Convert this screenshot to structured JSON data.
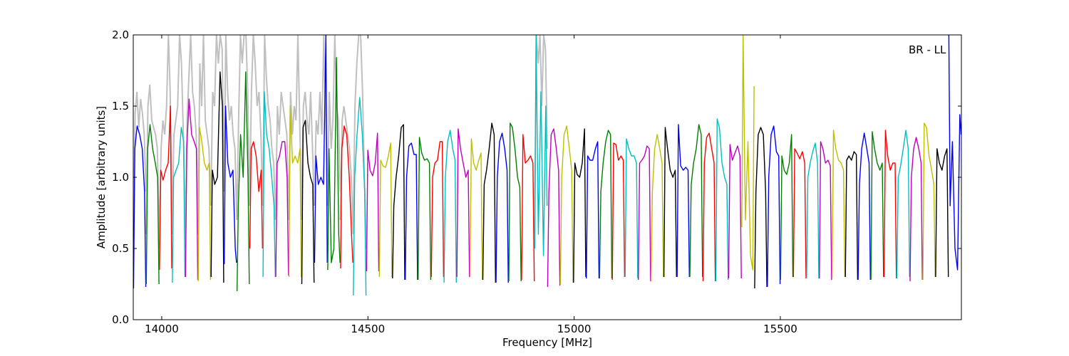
{
  "chart_data": {
    "type": "line",
    "xlabel": "Frequency [MHz]",
    "ylabel": "Amplitude [arbitrary units]",
    "annotation": "BR - LL",
    "xlim": [
      13931,
      15939
    ],
    "ylim": [
      0,
      2.0
    ],
    "xticks": [
      14000,
      14500,
      15000,
      15500
    ],
    "xtick_labels": [
      "14000",
      "14500",
      "15000",
      "15500"
    ],
    "yticks": [
      0,
      0.5,
      1.0,
      1.5,
      2.0
    ],
    "ytick_labels": [
      "0.0",
      "0.5",
      "1.0",
      "1.5",
      "2.0"
    ],
    "grid": false,
    "colors": {
      "b": "#0000ff",
      "g": "#008000",
      "r": "#ff0000",
      "c": "#00bfbf",
      "m": "#bf00bf",
      "y": "#bfbf00",
      "k": "#000000",
      "grey": "#c0c0c0"
    },
    "reference_segments": [
      {
        "f": [
          13931,
          13962
        ],
        "v": [
          0.5,
          1.45,
          1.6,
          1.35,
          1.55,
          1.45,
          1.3,
          0.9
        ]
      },
      {
        "f": [
          13962,
          13994
        ],
        "v": [
          0.6,
          1.5,
          1.65,
          1.4,
          1.35,
          1.3,
          1.2,
          0.6
        ]
      },
      {
        "f": [
          13994,
          14025
        ],
        "v": [
          0.5,
          1.2,
          1.4,
          1.3,
          1.5,
          2.0,
          1.6,
          0.6
        ]
      },
      {
        "f": [
          14025,
          14057
        ],
        "v": [
          0.6,
          1.3,
          1.4,
          1.5,
          2.0,
          1.8,
          1.3,
          0.7
        ]
      },
      {
        "f": [
          14057,
          14088
        ],
        "v": [
          0.5,
          1.4,
          1.7,
          2.0,
          1.6,
          1.5,
          1.3,
          0.6
        ]
      },
      {
        "f": [
          14088,
          14119
        ],
        "v": [
          0.6,
          1.8,
          1.5,
          2.0,
          1.4,
          1.3,
          1.2,
          0.8
        ]
      },
      {
        "f": [
          14119,
          14151
        ],
        "v": [
          0.8,
          1.6,
          1.5,
          2.0,
          1.8,
          2.0,
          1.9,
          1.0
        ]
      },
      {
        "f": [
          14151,
          14182
        ],
        "v": [
          0.9,
          2.0,
          1.6,
          1.4,
          1.5,
          1.3,
          1.2,
          0.7
        ]
      },
      {
        "f": [
          14182,
          14213
        ],
        "v": [
          0.7,
          1.4,
          2.0,
          1.8,
          2.0,
          2.0,
          1.6,
          0.8
        ]
      },
      {
        "f": [
          14213,
          14245
        ],
        "v": [
          0.8,
          1.6,
          2.0,
          1.8,
          1.5,
          1.6,
          1.3,
          0.8
        ]
      },
      {
        "f": [
          14245,
          14276
        ],
        "v": [
          0.8,
          2.0,
          1.7,
          1.5,
          1.4,
          1.2,
          1.1,
          0.7
        ]
      },
      {
        "f": [
          14276,
          14308
        ],
        "v": [
          0.7,
          1.5,
          1.3,
          1.6,
          1.5,
          1.4,
          1.3,
          0.7
        ]
      },
      {
        "f": [
          14308,
          14339
        ],
        "v": [
          0.7,
          1.6,
          1.3,
          1.5,
          1.4,
          2.0,
          1.4,
          0.8
        ]
      },
      {
        "f": [
          14339,
          14370
        ],
        "v": [
          0.7,
          1.5,
          1.6,
          1.4,
          1.3,
          1.6,
          1.2,
          0.8
        ]
      },
      {
        "f": [
          14370,
          14402
        ],
        "v": [
          0.8,
          1.4,
          1.3,
          1.6,
          1.3,
          2.0,
          1.4,
          1.0
        ]
      },
      {
        "f": [
          14402,
          14433
        ],
        "v": [
          0.8,
          1.6,
          1.2,
          1.4,
          2.0,
          1.5,
          1.4,
          0.9
        ]
      },
      {
        "f": [
          14433,
          14464
        ],
        "v": [
          0.7,
          1.4,
          1.5,
          1.4,
          1.3,
          1.2,
          1.0,
          0.6
        ]
      },
      {
        "f": [
          14464,
          14496
        ],
        "v": [
          0.6,
          1.5,
          1.8,
          2.0,
          2.0,
          1.6,
          1.0,
          0.5
        ]
      },
      {
        "f": [
          14904,
          14935
        ],
        "v": [
          0.6,
          2.0,
          1.8,
          2.0,
          1.5,
          2.0,
          1.9,
          1.2
        ]
      }
    ],
    "segments": [
      {
        "f": [
          13931,
          13962
        ],
        "c": "b",
        "v": [
          0.22,
          1.2,
          1.36,
          1.3,
          1.2,
          0.9,
          0.23
        ]
      },
      {
        "f": [
          13962,
          13994
        ],
        "c": "g",
        "v": [
          0.25,
          1.2,
          1.37,
          1.2,
          1.1,
          1.0,
          0.25
        ]
      },
      {
        "f": [
          13994,
          14025
        ],
        "c": "r",
        "v": [
          0.35,
          1.05,
          0.98,
          1.05,
          1.1,
          1.5,
          0.36
        ]
      },
      {
        "f": [
          14025,
          14057
        ],
        "c": "c",
        "v": [
          0.26,
          1.0,
          1.05,
          1.1,
          1.35,
          1.25,
          0.3
        ]
      },
      {
        "f": [
          14057,
          14088
        ],
        "c": "m",
        "v": [
          0.3,
          1.2,
          1.55,
          1.3,
          1.25,
          1.2,
          0.28
        ]
      },
      {
        "f": [
          14088,
          14119
        ],
        "c": "y",
        "v": [
          0.27,
          1.35,
          1.25,
          1.1,
          1.05,
          1.1,
          0.28
        ]
      },
      {
        "f": [
          14119,
          14151
        ],
        "c": "k",
        "v": [
          0.3,
          1.05,
          0.95,
          1.0,
          1.74,
          1.5,
          0.26
        ]
      },
      {
        "f": [
          14151,
          14182
        ],
        "c": "b",
        "v": [
          0.39,
          1.5,
          1.1,
          1.0,
          1.05,
          0.5,
          0.4
        ]
      },
      {
        "f": [
          14182,
          14213
        ],
        "c": "g",
        "v": [
          0.2,
          0.8,
          1.3,
          1.0,
          1.74,
          1.0,
          0.25
        ]
      },
      {
        "f": [
          14213,
          14245
        ],
        "c": "r",
        "v": [
          0.5,
          1.2,
          1.25,
          1.15,
          0.9,
          1.05,
          0.5
        ]
      },
      {
        "f": [
          14245,
          14276
        ],
        "c": "c",
        "v": [
          0.3,
          1.6,
          1.3,
          1.2,
          1.0,
          0.8,
          0.3
        ]
      },
      {
        "f": [
          14276,
          14308
        ],
        "c": "m",
        "v": [
          0.3,
          1.1,
          1.15,
          1.25,
          1.25,
          1.0,
          0.31
        ]
      },
      {
        "f": [
          14308,
          14339
        ],
        "c": "y",
        "v": [
          0.3,
          1.5,
          1.1,
          1.15,
          1.1,
          1.2,
          0.3
        ]
      },
      {
        "f": [
          14339,
          14370
        ],
        "c": "k",
        "v": [
          0.25,
          1.35,
          1.4,
          1.1,
          1.0,
          0.95,
          0.26
        ]
      },
      {
        "f": [
          14370,
          14402
        ],
        "c": "b",
        "v": [
          0.4,
          1.15,
          0.95,
          1.0,
          0.95,
          2.0,
          0.4
        ]
      },
      {
        "f": [
          14402,
          14433
        ],
        "c": "g",
        "v": [
          0.35,
          1.2,
          0.4,
          0.5,
          1.84,
          0.6,
          0.4
        ]
      },
      {
        "f": [
          14433,
          14464
        ],
        "c": "r",
        "v": [
          0.36,
          1.2,
          1.36,
          1.3,
          1.0,
          0.6,
          0.4
        ]
      },
      {
        "f": [
          14464,
          14496
        ],
        "c": "c",
        "v": [
          0.17,
          1.0,
          1.3,
          1.56,
          1.3,
          0.9,
          0.17
        ]
      },
      {
        "f": [
          14496,
          14527
        ],
        "c": "m",
        "v": [
          0.34,
          1.19,
          1.05,
          1.01,
          1.1,
          1.31,
          0.34
        ]
      },
      {
        "f": [
          14527,
          14559
        ],
        "c": "y",
        "v": [
          0.3,
          1.12,
          1.08,
          1.07,
          1.15,
          1.24,
          0.3
        ]
      },
      {
        "f": [
          14559,
          14590
        ],
        "c": "k",
        "v": [
          0.29,
          0.8,
          1.0,
          1.15,
          1.35,
          1.37,
          0.28
        ]
      },
      {
        "f": [
          14590,
          14621
        ],
        "c": "b",
        "v": [
          0.28,
          1.0,
          1.22,
          1.24,
          1.16,
          1.16,
          0.28
        ]
      },
      {
        "f": [
          14621,
          14653
        ],
        "c": "g",
        "v": [
          0.28,
          1.28,
          1.17,
          1.12,
          1.13,
          1.1,
          0.28
        ]
      },
      {
        "f": [
          14653,
          14684
        ],
        "c": "r",
        "v": [
          0.3,
          1.0,
          1.1,
          1.12,
          1.25,
          1.25,
          0.3
        ]
      },
      {
        "f": [
          14684,
          14715
        ],
        "c": "c",
        "v": [
          0.26,
          1.0,
          1.25,
          1.33,
          1.2,
          1.12,
          0.26
        ]
      },
      {
        "f": [
          14715,
          14747
        ],
        "c": "m",
        "v": [
          0.3,
          1.34,
          1.2,
          1.1,
          1.0,
          1.05,
          0.3
        ]
      },
      {
        "f": [
          14747,
          14778
        ],
        "c": "y",
        "v": [
          0.3,
          1.27,
          1.1,
          1.05,
          1.12,
          1.17,
          0.28
        ]
      },
      {
        "f": [
          14778,
          14810
        ],
        "c": "k",
        "v": [
          0.28,
          0.95,
          1.05,
          1.2,
          1.38,
          1.3,
          0.26
        ]
      },
      {
        "f": [
          14810,
          14841
        ],
        "c": "b",
        "v": [
          0.26,
          1.0,
          1.25,
          1.31,
          1.2,
          1.05,
          0.26
        ]
      },
      {
        "f": [
          14841,
          14872
        ],
        "c": "g",
        "v": [
          0.27,
          1.38,
          1.35,
          1.2,
          1.0,
          0.93,
          0.27
        ]
      },
      {
        "f": [
          14872,
          14904
        ],
        "c": "r",
        "v": [
          0.28,
          1.3,
          1.1,
          1.12,
          1.15,
          1.1,
          0.27
        ]
      },
      {
        "f": [
          14904,
          14935
        ],
        "c": "c",
        "v": [
          0.5,
          2.0,
          0.6,
          1.6,
          0.45,
          1.5,
          0.8
        ]
      },
      {
        "f": [
          14935,
          14966
        ],
        "c": "m",
        "v": [
          0.23,
          0.9,
          1.3,
          1.34,
          1.2,
          1.05,
          0.24
        ]
      },
      {
        "f": [
          14966,
          14998
        ],
        "c": "y",
        "v": [
          0.25,
          1.0,
          1.3,
          1.36,
          1.2,
          1.05,
          0.26
        ]
      },
      {
        "f": [
          14998,
          15029
        ],
        "c": "k",
        "v": [
          0.26,
          1.1,
          1.02,
          1.0,
          1.1,
          1.34,
          0.3
        ]
      },
      {
        "f": [
          15029,
          15061
        ],
        "c": "b",
        "v": [
          0.29,
          1.15,
          1.12,
          1.12,
          1.2,
          1.25,
          0.29
        ]
      },
      {
        "f": [
          15061,
          15092
        ],
        "c": "g",
        "v": [
          0.29,
          0.9,
          1.1,
          1.25,
          1.33,
          1.3,
          0.29
        ]
      },
      {
        "f": [
          15092,
          15123
        ],
        "c": "r",
        "v": [
          0.28,
          1.24,
          1.23,
          1.12,
          1.15,
          1.12,
          0.3
        ]
      },
      {
        "f": [
          15123,
          15155
        ],
        "c": "c",
        "v": [
          0.3,
          1.27,
          1.2,
          1.15,
          1.15,
          1.1,
          0.29
        ]
      },
      {
        "f": [
          15155,
          15186
        ],
        "c": "m",
        "v": [
          0.28,
          1.1,
          1.12,
          1.15,
          1.22,
          1.2,
          0.27
        ]
      },
      {
        "f": [
          15186,
          15217
        ],
        "c": "y",
        "v": [
          0.27,
          0.9,
          1.2,
          1.3,
          1.2,
          1.1,
          0.3
        ]
      },
      {
        "f": [
          15217,
          15249
        ],
        "c": "k",
        "v": [
          0.3,
          1.35,
          1.2,
          1.05,
          1.0,
          1.05,
          0.3
        ]
      },
      {
        "f": [
          15249,
          15280
        ],
        "c": "b",
        "v": [
          0.3,
          1.37,
          1.08,
          1.05,
          1.07,
          1.05,
          0.3
        ]
      },
      {
        "f": [
          15280,
          15312
        ],
        "c": "g",
        "v": [
          0.3,
          0.95,
          1.1,
          1.2,
          1.37,
          1.3,
          0.3
        ]
      },
      {
        "f": [
          15312,
          15343
        ],
        "c": "r",
        "v": [
          0.27,
          1.1,
          1.28,
          1.31,
          1.2,
          1.1,
          0.27
        ]
      },
      {
        "f": [
          15343,
          15374
        ],
        "c": "c",
        "v": [
          0.27,
          1.41,
          1.35,
          1.1,
          1.0,
          0.95,
          0.28
        ]
      },
      {
        "f": [
          15374,
          15406
        ],
        "c": "m",
        "v": [
          0.29,
          1.23,
          1.12,
          1.17,
          1.22,
          1.15,
          0.29
        ]
      },
      {
        "f": [
          15406,
          15437
        ],
        "c": "y",
        "v": [
          0.65,
          2.0,
          0.7,
          1.25,
          0.45,
          0.35,
          1.64
        ]
      },
      {
        "f": [
          15437,
          15468
        ],
        "c": "k",
        "v": [
          0.22,
          0.9,
          1.3,
          1.35,
          1.3,
          0.9,
          0.23
        ]
      },
      {
        "f": [
          15468,
          15500
        ],
        "c": "b",
        "v": [
          0.23,
          1.0,
          1.3,
          1.36,
          1.18,
          1.15,
          0.25
        ]
      },
      {
        "f": [
          15500,
          15531
        ],
        "c": "g",
        "v": [
          0.28,
          1.15,
          1.05,
          1.02,
          1.1,
          1.3,
          0.3
        ]
      },
      {
        "f": [
          15531,
          15563
        ],
        "c": "r",
        "v": [
          0.3,
          1.2,
          1.17,
          1.13,
          1.18,
          1.1,
          0.29
        ]
      },
      {
        "f": [
          15563,
          15594
        ],
        "c": "c",
        "v": [
          0.29,
          1.0,
          1.1,
          1.18,
          1.24,
          1.1,
          0.29
        ]
      },
      {
        "f": [
          15594,
          15625
        ],
        "c": "m",
        "v": [
          0.29,
          1.25,
          1.2,
          1.1,
          1.12,
          1.08,
          0.28
        ]
      },
      {
        "f": [
          15625,
          15657
        ],
        "c": "y",
        "v": [
          0.29,
          1.33,
          1.2,
          1.12,
          1.1,
          1.05,
          0.3
        ]
      },
      {
        "f": [
          15657,
          15688
        ],
        "c": "k",
        "v": [
          0.3,
          1.12,
          1.15,
          1.12,
          1.18,
          1.16,
          0.28
        ]
      },
      {
        "f": [
          15688,
          15719
        ],
        "c": "b",
        "v": [
          0.28,
          0.95,
          1.2,
          1.31,
          1.2,
          1.1,
          0.28
        ]
      },
      {
        "f": [
          15719,
          15751
        ],
        "c": "g",
        "v": [
          0.28,
          1.32,
          1.2,
          1.1,
          1.05,
          1.1,
          0.3
        ]
      },
      {
        "f": [
          15751,
          15782
        ],
        "c": "r",
        "v": [
          0.3,
          1.33,
          1.15,
          1.05,
          1.1,
          1.1,
          0.29
        ]
      },
      {
        "f": [
          15782,
          15814
        ],
        "c": "c",
        "v": [
          0.29,
          1.0,
          1.08,
          1.2,
          1.33,
          1.2,
          0.3
        ]
      },
      {
        "f": [
          15814,
          15845
        ],
        "c": "m",
        "v": [
          0.27,
          1.0,
          1.2,
          1.28,
          1.2,
          1.1,
          0.28
        ]
      },
      {
        "f": [
          15845,
          15876
        ],
        "c": "y",
        "v": [
          0.28,
          1.38,
          1.35,
          1.15,
          1.05,
          0.95,
          0.3
        ]
      },
      {
        "f": [
          15876,
          15908
        ],
        "c": "k",
        "v": [
          0.3,
          1.2,
          1.1,
          1.05,
          1.15,
          1.2,
          0.3
        ]
      },
      {
        "f": [
          15908,
          15939
        ],
        "c": "b",
        "v": [
          2.0,
          0.8,
          1.25,
          0.5,
          0.35,
          1.44,
          1.3
        ]
      }
    ]
  }
}
